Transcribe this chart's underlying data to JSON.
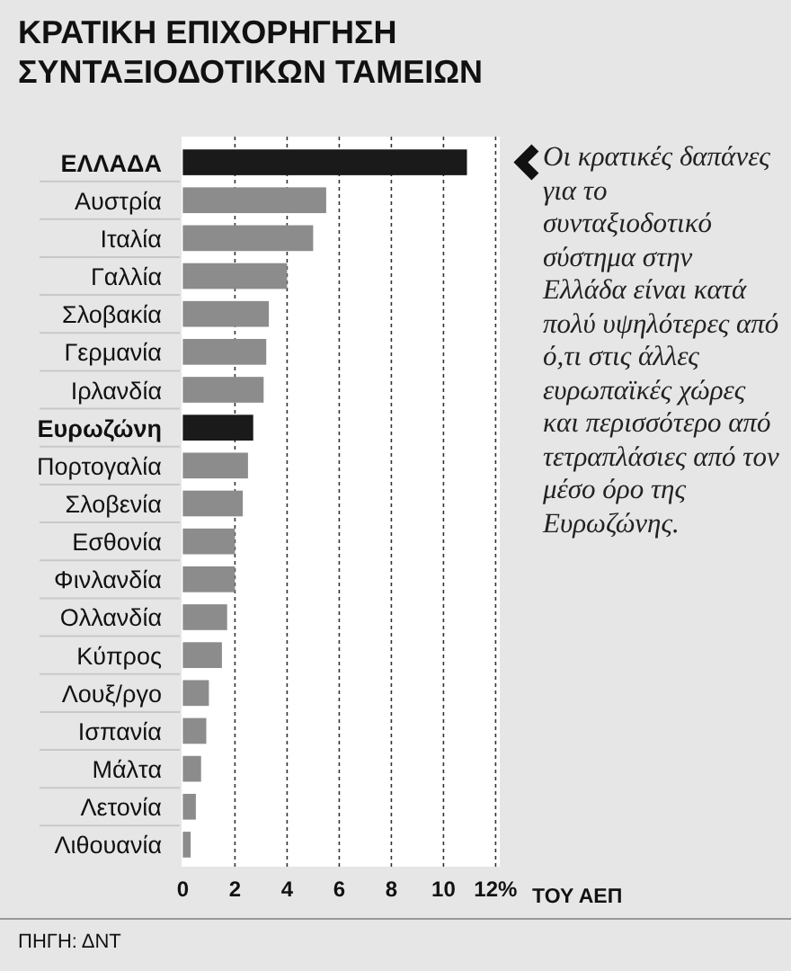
{
  "chart_data": {
    "type": "bar",
    "orientation": "horizontal",
    "title": "ΚΡΑΤΙΚΗ ΕΠΙΧΟΡΗΓΗΣΗ\nΣΥΝΤΑΞΙΟΔΟΤΙΚΩΝ ΤΑΜΕΙΩΝ",
    "xlabel": "ΤΟΥ ΑΕΠ",
    "categories": [
      "ΕΛΛΑΔΑ",
      "Αυστρία",
      "Ιταλία",
      "Γαλλία",
      "Σλοβακία",
      "Γερμανία",
      "Ιρλανδία",
      "Ευρωζώνη",
      "Πορτογαλία",
      "Σλοβενία",
      "Εσθονία",
      "Φινλανδία",
      "Ολλανδία",
      "Κύπρος",
      "Λουξ/ργο",
      "Ισπανία",
      "Μάλτα",
      "Λετονία",
      "Λιθουανία"
    ],
    "values": [
      10.9,
      5.5,
      5.0,
      4.0,
      3.3,
      3.2,
      3.1,
      2.7,
      2.5,
      2.3,
      2.0,
      2.0,
      1.7,
      1.5,
      1.0,
      0.9,
      0.7,
      0.5,
      0.3
    ],
    "colors": [
      "#1a1a1a",
      "#8c8c8c",
      "#8c8c8c",
      "#8c8c8c",
      "#8c8c8c",
      "#8c8c8c",
      "#8c8c8c",
      "#1a1a1a",
      "#8c8c8c",
      "#8c8c8c",
      "#8c8c8c",
      "#8c8c8c",
      "#8c8c8c",
      "#8c8c8c",
      "#8c8c8c",
      "#8c8c8c",
      "#8c8c8c",
      "#8c8c8c",
      "#8c8c8c"
    ],
    "xlim": [
      0,
      12
    ],
    "xticks": [
      0,
      2,
      4,
      6,
      8,
      10,
      {
        "value": 12,
        "label": "12%"
      }
    ],
    "grid": "x",
    "annotations": [
      {
        "text": "Οι κρατικές δαπάνες για το συνταξιοδοτικό σύστημα στην Ελλάδα είναι κατά πολύ υψηλότερες από ό,τι στις άλλες ευρωπαϊκές χώρες και περισσότερο από τετραπλάσιες από τον μέσο όρο της Ευρωζώνης."
      },
      "ΠΗΓΗ: ΔΝΤ"
    ]
  }
}
